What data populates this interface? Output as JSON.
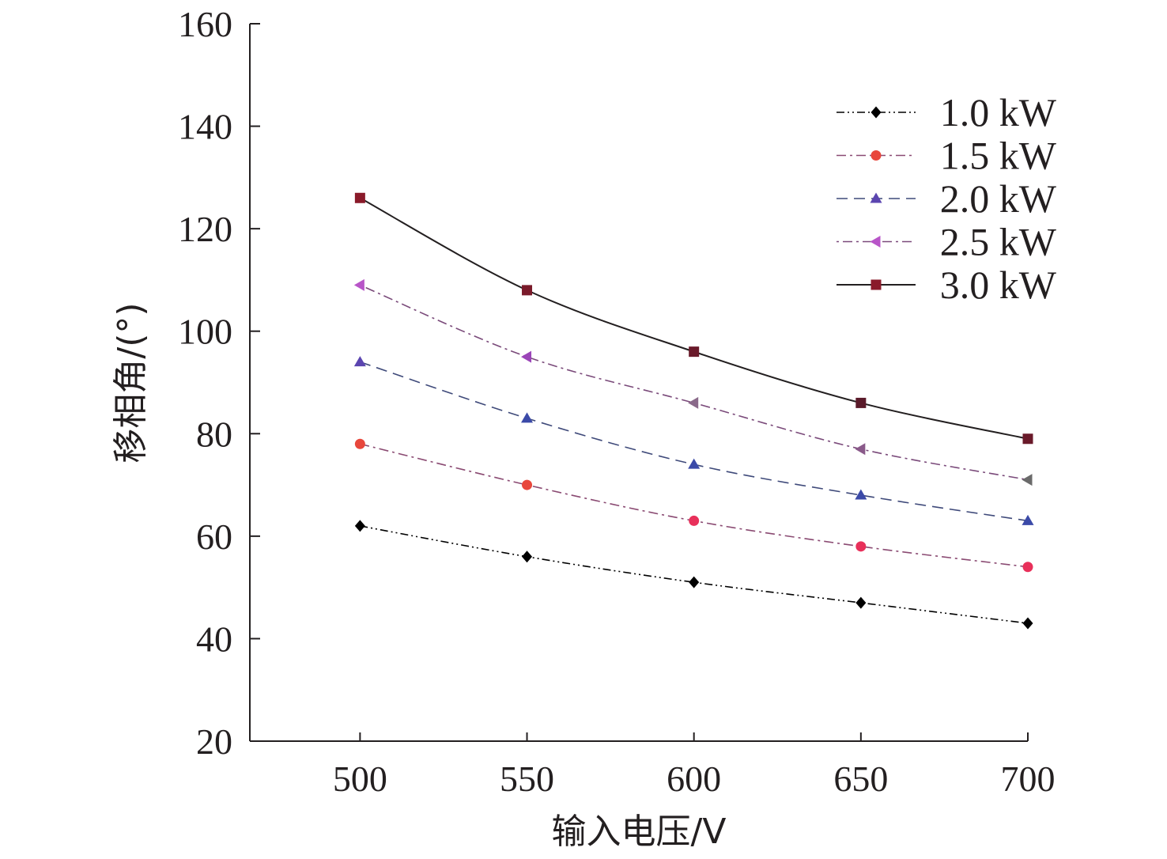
{
  "chart_data": {
    "type": "line",
    "title": "",
    "xlabel": "输入电压/V",
    "ylabel": "移相角/(°)",
    "x": [
      500,
      550,
      600,
      650,
      700
    ],
    "xlim": [
      467,
      700
    ],
    "ylim": [
      20,
      160
    ],
    "xticks": [
      "500",
      "550",
      "600",
      "650",
      "700"
    ],
    "yticks": [
      "20",
      "40",
      "60",
      "80",
      "100",
      "120",
      "140",
      "160"
    ],
    "grid": false,
    "legend_position": "top-right",
    "series": [
      {
        "name": "1.0 kW",
        "values": [
          62,
          56,
          51,
          47,
          43
        ],
        "color": "#000000",
        "marker": "diamond",
        "dash": "dash-dot-dot",
        "marker_colors": [
          "#000000"
        ]
      },
      {
        "name": "1.5 kW",
        "values": [
          78,
          70,
          63,
          58,
          54
        ],
        "color": "#8a4a72",
        "marker": "circle",
        "dash": "dash-dot",
        "marker_colors": [
          "#e8473c",
          "#e8473c",
          "#e8305a",
          "#e8305a",
          "#e8305a"
        ]
      },
      {
        "name": "2.0 kW",
        "values": [
          94,
          83,
          74,
          68,
          63
        ],
        "color": "#3f4a7a",
        "marker": "triangle-up",
        "dash": "dash",
        "marker_colors": [
          "#5b45b0",
          "#3b4aa8",
          "#3b4aa8",
          "#3b4aa8",
          "#3b4aa8"
        ]
      },
      {
        "name": "2.5 kW",
        "values": [
          109,
          95,
          86,
          77,
          71
        ],
        "color": "#7a4a7a",
        "marker": "triangle-left",
        "dash": "dot-dash",
        "marker_colors": [
          "#b855c8",
          "#9b45b8",
          "#8a6a8a",
          "#8a5a8a",
          "#6a6a6a"
        ]
      },
      {
        "name": "3.0 kW",
        "values": [
          126,
          108,
          96,
          86,
          79
        ],
        "color": "#231f20",
        "marker": "square",
        "dash": "solid",
        "marker_colors": [
          "#8a1a2a",
          "#7a1a2a",
          "#6a1a2a",
          "#5a1a2a",
          "#6a1a2a"
        ]
      }
    ]
  }
}
